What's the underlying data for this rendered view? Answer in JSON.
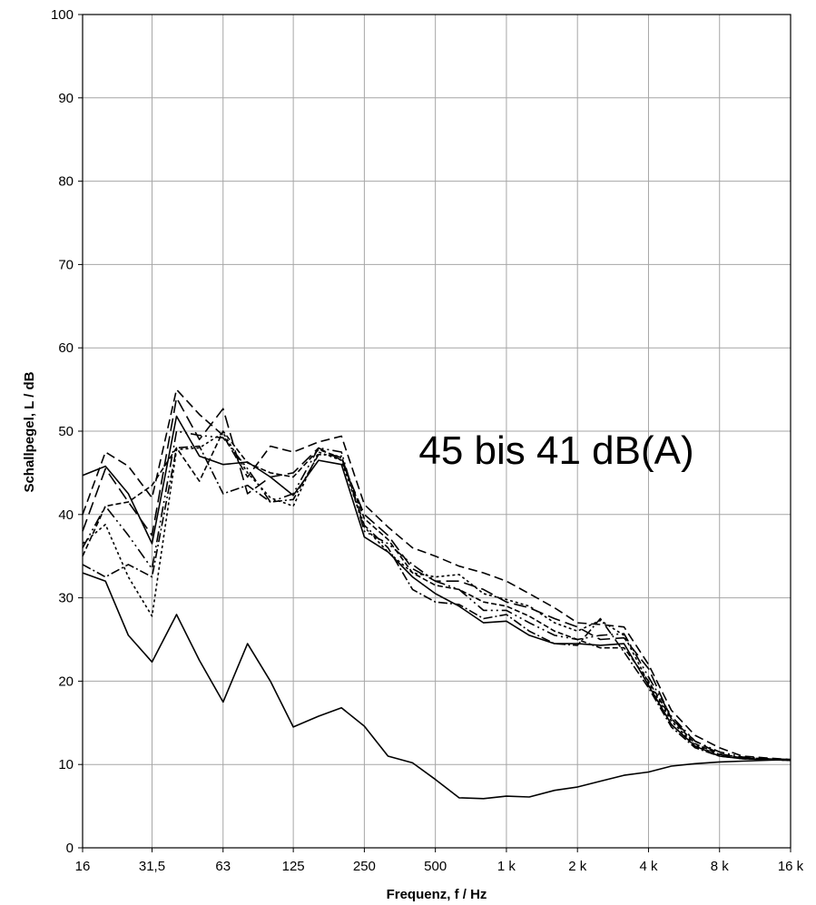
{
  "chart_data": {
    "type": "line",
    "title": "",
    "annotation": "45 bis 41 dB(A)",
    "xlabel": "Frequenz, f / Hz",
    "ylabel": "Schallpegel, L / dB",
    "ylim": [
      0,
      100
    ],
    "y_ticks": [
      0,
      10,
      20,
      30,
      40,
      50,
      60,
      70,
      80,
      90,
      100
    ],
    "x_scale": "log2 (third-octave points)",
    "x_ticks": [
      {
        "value": 16,
        "label": "16"
      },
      {
        "value": 31.5,
        "label": "31,5"
      },
      {
        "value": 63,
        "label": "63"
      },
      {
        "value": 125,
        "label": "125"
      },
      {
        "value": 250,
        "label": "250"
      },
      {
        "value": 500,
        "label": "500"
      },
      {
        "value": 1000,
        "label": "1 k"
      },
      {
        "value": 2000,
        "label": "2 k"
      },
      {
        "value": 4000,
        "label": "4 k"
      },
      {
        "value": 8000,
        "label": "8 k"
      },
      {
        "value": 16000,
        "label": "16 k"
      }
    ],
    "grid": true,
    "legend": "none",
    "x": [
      16,
      20,
      25,
      31.5,
      40,
      50,
      63,
      80,
      100,
      125,
      160,
      200,
      250,
      315,
      400,
      500,
      630,
      800,
      1000,
      1250,
      1600,
      2000,
      2500,
      3150,
      4000,
      5000,
      6300,
      8000,
      10000,
      12500,
      16000
    ],
    "series": [
      {
        "dash": "",
        "values": [
          33,
          32,
          25.5,
          22.3,
          28,
          22.5,
          17.5,
          24.5,
          20,
          14.5,
          15.8,
          16.8,
          14.6,
          11,
          10.2,
          8.2,
          6,
          5.9,
          6.2,
          6.1,
          6.9,
          7.3,
          8,
          8.7,
          9.1,
          9.8,
          10.1,
          10.3,
          10.4,
          10.5,
          10.6
        ]
      },
      {
        "dash": "",
        "values": [
          44.7,
          45.8,
          42.5,
          36.5,
          51.8,
          47,
          46,
          46.3,
          44.5,
          42.3,
          46.5,
          46,
          37.3,
          35.5,
          32.5,
          30.5,
          29,
          27,
          27.2,
          25.5,
          24.5,
          24.5,
          24.3,
          24.5,
          19.5,
          14.8,
          12.2,
          11,
          10.7,
          10.6,
          10.5
        ]
      },
      {
        "dash": "10,5",
        "values": [
          40,
          47.5,
          45.8,
          42,
          55,
          52,
          49.5,
          44.5,
          48.2,
          47.5,
          48.7,
          49.4,
          41.2,
          38.5,
          36,
          35,
          33.8,
          33,
          32,
          30.5,
          28.8,
          27,
          26.8,
          26.5,
          22,
          16.5,
          13.5,
          12,
          11,
          10.8,
          10.6
        ]
      },
      {
        "dash": "14,6",
        "values": [
          38,
          45.5,
          41.5,
          37.5,
          54,
          49,
          52.7,
          42.5,
          44.5,
          45,
          48,
          46.5,
          40,
          37.5,
          33.5,
          32,
          32,
          31,
          29.5,
          28.8,
          27.5,
          26.5,
          25,
          25.2,
          21.5,
          15.5,
          12.8,
          11.3,
          10.8,
          10.7,
          10.6
        ]
      },
      {
        "dash": "6,3",
        "values": [
          35,
          41,
          41.5,
          43.5,
          48,
          44,
          50,
          46.2,
          45,
          44.5,
          47.8,
          46.8,
          39.5,
          37,
          33,
          31.5,
          31,
          29.5,
          29,
          27.8,
          26,
          25,
          24,
          24,
          20,
          15.5,
          12.5,
          11.2,
          10.8,
          10.6,
          10.5
        ]
      },
      {
        "dash": "3,3",
        "values": [
          36.5,
          38.8,
          32.5,
          27.8,
          47.8,
          48,
          49.8,
          45,
          42,
          41,
          47.5,
          46.5,
          38.5,
          35.5,
          33,
          32.5,
          32.8,
          30.5,
          29.8,
          29,
          27,
          26,
          27.3,
          25.5,
          19.8,
          15.2,
          12.3,
          11.1,
          10.7,
          10.6,
          10.5
        ]
      },
      {
        "dash": "10,3,2,3",
        "values": [
          34,
          32.5,
          34,
          32.5,
          48,
          48.2,
          42.5,
          43.5,
          41.5,
          41.8,
          47.2,
          47,
          38.7,
          36,
          31,
          29.5,
          29.2,
          27.5,
          28,
          26,
          24.5,
          24.3,
          27.5,
          23.5,
          19.2,
          14.5,
          12,
          11,
          10.7,
          10.6,
          10.5
        ]
      },
      {
        "dash": "12,4,2,4,2,4",
        "values": [
          36,
          41,
          37.5,
          33.5,
          50,
          49.5,
          49.2,
          45.5,
          41.5,
          42.5,
          48,
          47.5,
          38,
          36.5,
          34,
          32,
          31,
          28.5,
          28.5,
          27,
          25.5,
          25,
          25.5,
          25.7,
          20.5,
          15.8,
          12.8,
          11.5,
          10.9,
          10.7,
          10.5
        ]
      }
    ]
  }
}
